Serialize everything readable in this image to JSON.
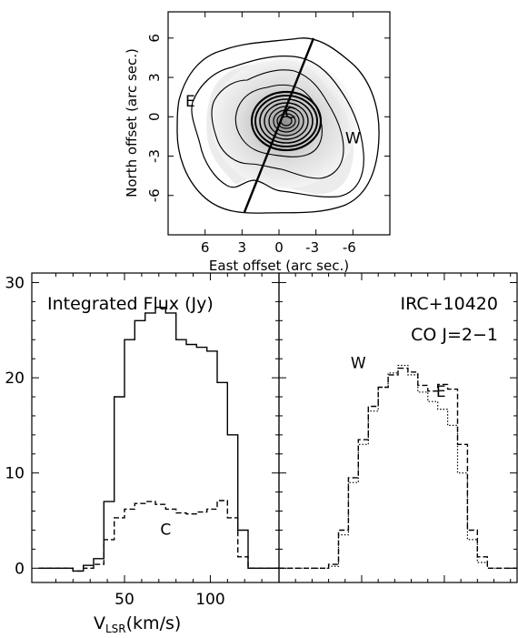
{
  "chart_data": [
    {
      "type": "contour",
      "xlabel": "East offset (arc sec.)",
      "ylabel": "North offset (arc sec.)",
      "xlim": [
        9,
        -9
      ],
      "ylim": [
        -9,
        8
      ],
      "xticks": [
        6,
        3,
        0,
        -3,
        -6
      ],
      "xtick_labels": [
        "6",
        "3",
        "0",
        "-3",
        "-6"
      ],
      "yticks": [
        6,
        3,
        0,
        -3,
        -6
      ],
      "ytick_labels": [
        "6",
        "3",
        "0",
        "-3",
        "-6"
      ],
      "annotations": [
        {
          "text": "E",
          "x": 7.2,
          "y": 1.2
        },
        {
          "text": "W",
          "x": -6.0,
          "y": -1.6
        },
        {
          "text": "C",
          "x": -0.9,
          "y": 0.3
        }
      ],
      "cut_line": {
        "from": [
          2.6,
          -7.1
        ],
        "to": [
          -2.8,
          6.6
        ]
      },
      "contour_levels": 12
    },
    {
      "type": "step",
      "title": "Integrated Flux (Jy)",
      "xlabel": "V",
      "xlabel_sub": "LSR",
      "xlabel_unit": "(km/s)",
      "xlim": [
        -4,
        140
      ],
      "ylim": [
        -1.5,
        31
      ],
      "xticks": [
        50,
        100
      ],
      "xtick_labels": [
        "50",
        "100"
      ],
      "yticks": [
        0,
        10,
        20,
        30
      ],
      "ytick_labels": [
        "0",
        "10",
        "20",
        "30"
      ],
      "annotations": [
        {
          "text": "C",
          "x": 74,
          "y": 3.5
        }
      ],
      "series": [
        {
          "style": "solid",
          "x": [
            0,
            20,
            26,
            32,
            38,
            44,
            50,
            56,
            62,
            68,
            74,
            80,
            86,
            92,
            98,
            104,
            110,
            116,
            122,
            140
          ],
          "values": [
            0,
            -0.3,
            0.3,
            1,
            7,
            18,
            24,
            26,
            26.8,
            27.4,
            26.8,
            24,
            23.5,
            23.2,
            22.8,
            19.5,
            14,
            4,
            0,
            0
          ]
        },
        {
          "style": "dashed",
          "x": [
            0,
            20,
            26,
            32,
            38,
            44,
            50,
            56,
            62,
            68,
            74,
            80,
            86,
            92,
            98,
            104,
            110,
            116,
            122,
            140
          ],
          "values": [
            0,
            -0.3,
            0,
            0.4,
            3,
            5.3,
            6.2,
            6.8,
            7,
            6.7,
            6.2,
            5.8,
            5.7,
            5.9,
            6.2,
            7.1,
            5.3,
            1.2,
            0,
            0
          ]
        }
      ]
    },
    {
      "type": "step",
      "title": "IRC+10420",
      "subtitle": "CO J=2−1",
      "xlim": [
        0,
        144
      ],
      "ylim": [
        -1.5,
        31
      ],
      "annotations": [
        {
          "text": "W",
          "x": 48,
          "y": 21
        },
        {
          "text": "E",
          "x": 98,
          "y": 18
        }
      ],
      "series": [
        {
          "style": "dashed",
          "x": [
            0,
            24,
            30,
            36,
            42,
            48,
            54,
            60,
            66,
            72,
            78,
            84,
            90,
            96,
            102,
            108,
            114,
            120,
            126,
            144
          ],
          "values": [
            0,
            0,
            0.4,
            4,
            9.5,
            13.5,
            17,
            19,
            20.3,
            21,
            20.6,
            19.2,
            18.6,
            19.3,
            18.8,
            13,
            4,
            1.2,
            0,
            0
          ]
        },
        {
          "style": "dotted",
          "x": [
            0,
            24,
            30,
            36,
            42,
            48,
            54,
            60,
            66,
            72,
            78,
            84,
            90,
            96,
            102,
            108,
            114,
            120,
            126,
            144
          ],
          "values": [
            0,
            0,
            0.2,
            3.5,
            9,
            13,
            16.5,
            19,
            20.5,
            21.3,
            20.3,
            18.5,
            17.5,
            16.7,
            15,
            10,
            3,
            0.6,
            0,
            0
          ]
        }
      ]
    }
  ]
}
